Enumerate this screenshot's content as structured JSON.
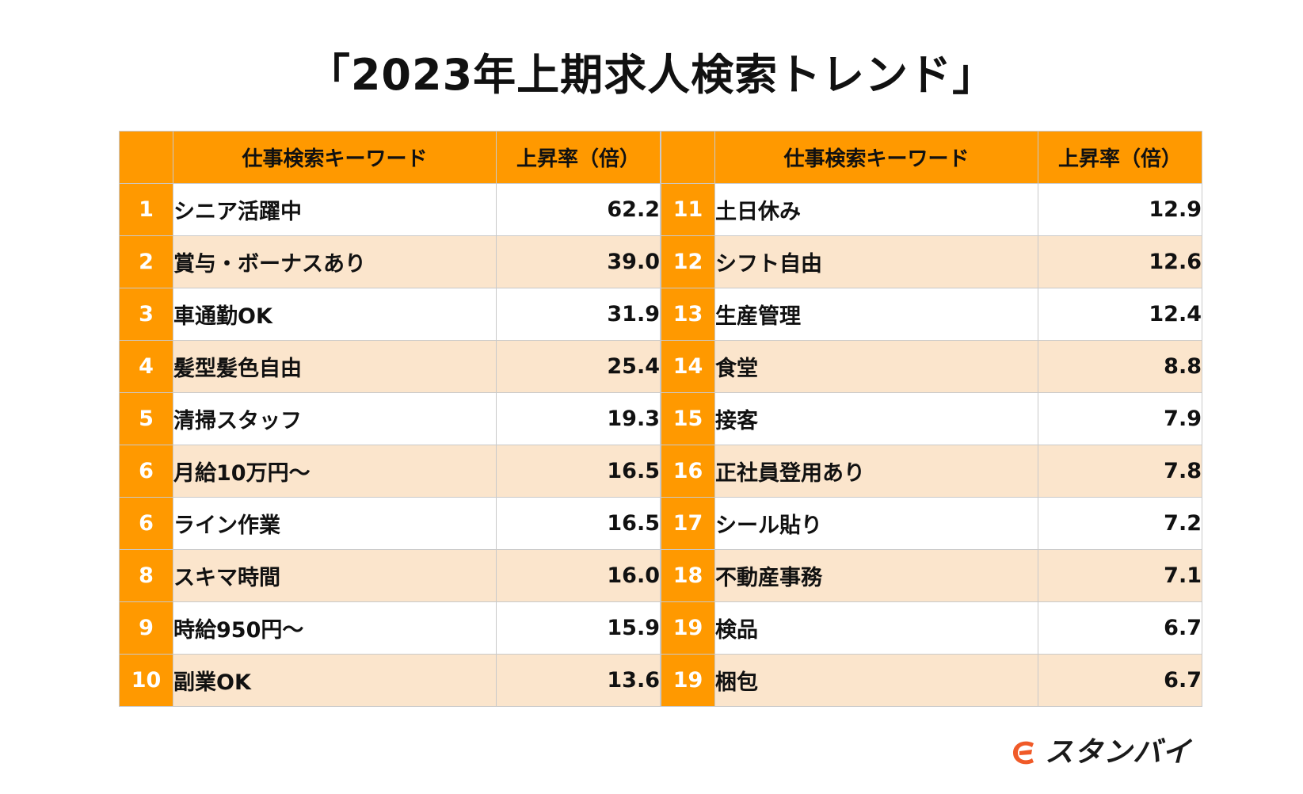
{
  "title": "「2023年上期求人検索トレンド」",
  "table": {
    "col_keyword": "仕事検索キーワード",
    "col_rate": "上昇率（倍）"
  },
  "chart_data": {
    "type": "table",
    "columns": [
      "",
      "仕事検索キーワード",
      "上昇率（倍）"
    ],
    "rows": [
      {
        "rank": "1",
        "keyword": "シニア活躍中",
        "rate": "62.2"
      },
      {
        "rank": "2",
        "keyword": "賞与・ボーナスあり",
        "rate": "39.0"
      },
      {
        "rank": "3",
        "keyword": "車通勤OK",
        "rate": "31.9"
      },
      {
        "rank": "4",
        "keyword": "髪型髪色自由",
        "rate": "25.4"
      },
      {
        "rank": "5",
        "keyword": "清掃スタッフ",
        "rate": "19.3"
      },
      {
        "rank": "6",
        "keyword": "月給10万円～",
        "rate": "16.5"
      },
      {
        "rank": "6",
        "keyword": "ライン作業",
        "rate": "16.5"
      },
      {
        "rank": "8",
        "keyword": "スキマ時間",
        "rate": "16.0"
      },
      {
        "rank": "9",
        "keyword": "時給950円～",
        "rate": "15.9"
      },
      {
        "rank": "10",
        "keyword": "副業OK",
        "rate": "13.6"
      },
      {
        "rank": "11",
        "keyword": "土日休み",
        "rate": "12.9"
      },
      {
        "rank": "12",
        "keyword": "シフト自由",
        "rate": "12.6"
      },
      {
        "rank": "13",
        "keyword": "生産管理",
        "rate": "12.4"
      },
      {
        "rank": "14",
        "keyword": "食堂",
        "rate": "8.8"
      },
      {
        "rank": "15",
        "keyword": "接客",
        "rate": "7.9"
      },
      {
        "rank": "16",
        "keyword": "正社員登用あり",
        "rate": "7.8"
      },
      {
        "rank": "17",
        "keyword": "シール貼り",
        "rate": "7.2"
      },
      {
        "rank": "18",
        "keyword": "不動産事務",
        "rate": "7.1"
      },
      {
        "rank": "19",
        "keyword": "検品",
        "rate": "6.7"
      },
      {
        "rank": "19",
        "keyword": "梱包",
        "rate": "6.7"
      }
    ]
  },
  "logo": {
    "text": "スタンバイ",
    "mark_color": "#f05a28",
    "icon": "standby-logo-icon"
  },
  "colors": {
    "header": "#ff9900",
    "rank_cell": "#ff9900",
    "stripe": "#fbe5cc"
  }
}
